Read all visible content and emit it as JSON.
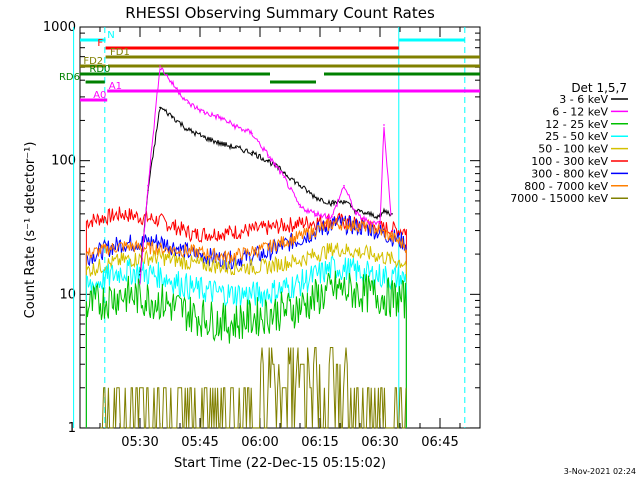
{
  "chart_data": {
    "type": "line",
    "title": "RHESSI Observing Summary Count Rates",
    "xlabel": "Start Time (22-Dec-15 05:15:02)",
    "ylabel": "Count Rate (s⁻¹ detector⁻¹)",
    "yscale": "log",
    "ylim": [
      1,
      1000
    ],
    "xlim_minutes_after_0515": [
      0,
      100
    ],
    "x_ticks": [
      "05:30",
      "05:45",
      "06:00",
      "06:15",
      "06:30",
      "06:45"
    ],
    "y_ticks": [
      "1",
      "10",
      "100",
      "1000"
    ],
    "legend_title": "Det 1,5,7",
    "legend_position": "right",
    "series": [
      {
        "name": "3 - 6 keV",
        "color": "#000000",
        "x": [
          "05:30",
          "05:32",
          "05:35",
          "05:38",
          "05:42",
          "05:46",
          "05:50",
          "05:54",
          "05:58",
          "06:02",
          "06:06",
          "06:10",
          "06:14",
          "06:18",
          "06:21",
          "06:24",
          "06:27",
          "06:30",
          "06:31",
          "06:33"
        ],
        "values": [
          14,
          60,
          250,
          215,
          170,
          150,
          135,
          125,
          115,
          100,
          82,
          65,
          53,
          48,
          50,
          42,
          40,
          38,
          42,
          40
        ]
      },
      {
        "name": "6 - 12 keV",
        "color": "#ff00ff",
        "x": [
          "05:30",
          "05:32",
          "05:35",
          "05:38",
          "05:42",
          "05:46",
          "05:50",
          "05:54",
          "05:58",
          "06:02",
          "06:06",
          "06:10",
          "06:14",
          "06:18",
          "06:21",
          "06:24",
          "06:27",
          "06:30",
          "06:31",
          "06:33"
        ],
        "values": [
          12,
          65,
          510,
          380,
          270,
          230,
          210,
          180,
          160,
          110,
          75,
          45,
          40,
          38,
          65,
          40,
          35,
          34,
          185,
          30
        ]
      },
      {
        "name": "12 - 25 keV",
        "color": "#00c000",
        "values": []
      },
      {
        "name": "25 - 50 keV",
        "color": "#00ffff",
        "values": []
      },
      {
        "name": "50 - 100 keV",
        "color": "#d4c000",
        "values": []
      },
      {
        "name": "100 - 300 keV",
        "color": "#ff0000",
        "values": []
      },
      {
        "name": "300 - 800 keV",
        "color": "#0000ff",
        "values": []
      },
      {
        "name": "800 - 7000 keV",
        "color": "#ff7f00",
        "values": []
      },
      {
        "name": "7000 - 15000 keV",
        "color": "#808000",
        "values": []
      }
    ],
    "flag_labels": [
      "N",
      "F",
      "FD1",
      "FD2",
      "RD0",
      "RD6",
      "A0",
      "A1"
    ],
    "footer_date": "3-Nov-2021 02:24"
  }
}
